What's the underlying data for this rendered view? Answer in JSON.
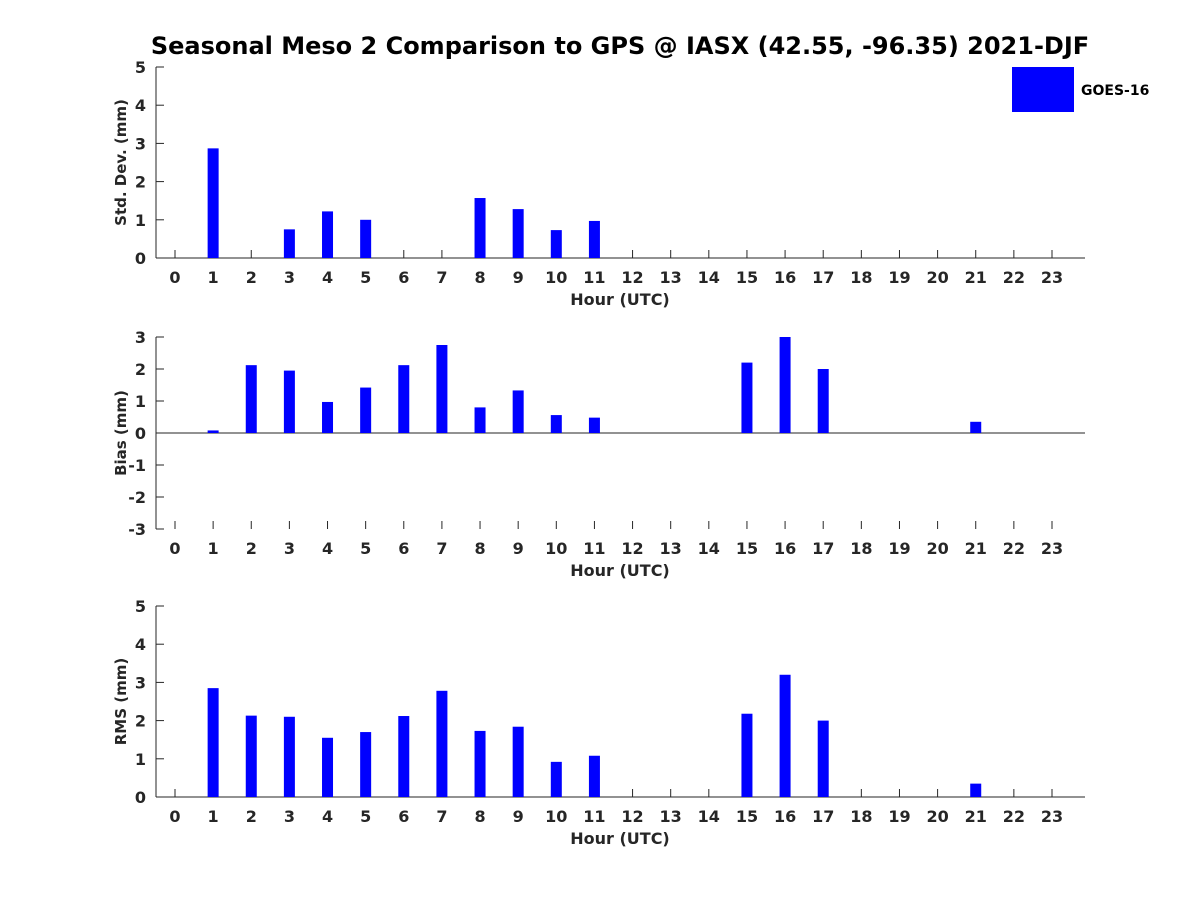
{
  "figure": {
    "title": "Seasonal Meso 2 Comparison to GPS @ IASX (42.55, -96.35) 2021-DJF",
    "bar_color": "#0000ff",
    "legend": {
      "label": "GOES-16",
      "placement": "top-right"
    }
  },
  "chart_data": [
    {
      "type": "bar",
      "ylabel": "Std. Dev. (mm)",
      "xlabel": "Hour (UTC)",
      "ylim": [
        0,
        5
      ],
      "yticks": [
        0,
        1,
        2,
        3,
        4,
        5
      ],
      "categories": [
        0,
        1,
        2,
        3,
        4,
        5,
        6,
        7,
        8,
        9,
        10,
        11,
        12,
        13,
        14,
        15,
        16,
        17,
        18,
        19,
        20,
        21,
        22,
        23
      ],
      "series": [
        {
          "name": "GOES-16",
          "values": [
            null,
            2.87,
            null,
            0.75,
            1.22,
            1.0,
            null,
            null,
            1.57,
            1.28,
            0.73,
            0.97,
            null,
            null,
            null,
            null,
            null,
            null,
            null,
            null,
            null,
            null,
            null,
            null
          ]
        }
      ]
    },
    {
      "type": "bar",
      "ylabel": "Bias (mm)",
      "xlabel": "Hour (UTC)",
      "ylim": [
        -3,
        3
      ],
      "yticks": [
        -3,
        -2,
        -1,
        0,
        1,
        2,
        3
      ],
      "categories": [
        0,
        1,
        2,
        3,
        4,
        5,
        6,
        7,
        8,
        9,
        10,
        11,
        12,
        13,
        14,
        15,
        16,
        17,
        18,
        19,
        20,
        21,
        22,
        23
      ],
      "series": [
        {
          "name": "GOES-16",
          "values": [
            null,
            0.08,
            2.12,
            1.95,
            0.97,
            1.42,
            2.12,
            2.75,
            0.8,
            1.33,
            0.56,
            0.48,
            null,
            null,
            null,
            2.2,
            3.0,
            2.0,
            null,
            null,
            null,
            0.35,
            null,
            null
          ]
        }
      ]
    },
    {
      "type": "bar",
      "ylabel": "RMS (mm)",
      "xlabel": "Hour (UTC)",
      "ylim": [
        0,
        5
      ],
      "yticks": [
        0,
        1,
        2,
        3,
        4,
        5
      ],
      "categories": [
        0,
        1,
        2,
        3,
        4,
        5,
        6,
        7,
        8,
        9,
        10,
        11,
        12,
        13,
        14,
        15,
        16,
        17,
        18,
        19,
        20,
        21,
        22,
        23
      ],
      "series": [
        {
          "name": "GOES-16",
          "values": [
            null,
            2.85,
            2.13,
            2.1,
            1.55,
            1.7,
            2.12,
            2.78,
            1.73,
            1.84,
            0.92,
            1.08,
            null,
            null,
            null,
            2.18,
            3.2,
            2.0,
            null,
            null,
            null,
            0.35,
            null,
            null
          ]
        }
      ]
    }
  ]
}
